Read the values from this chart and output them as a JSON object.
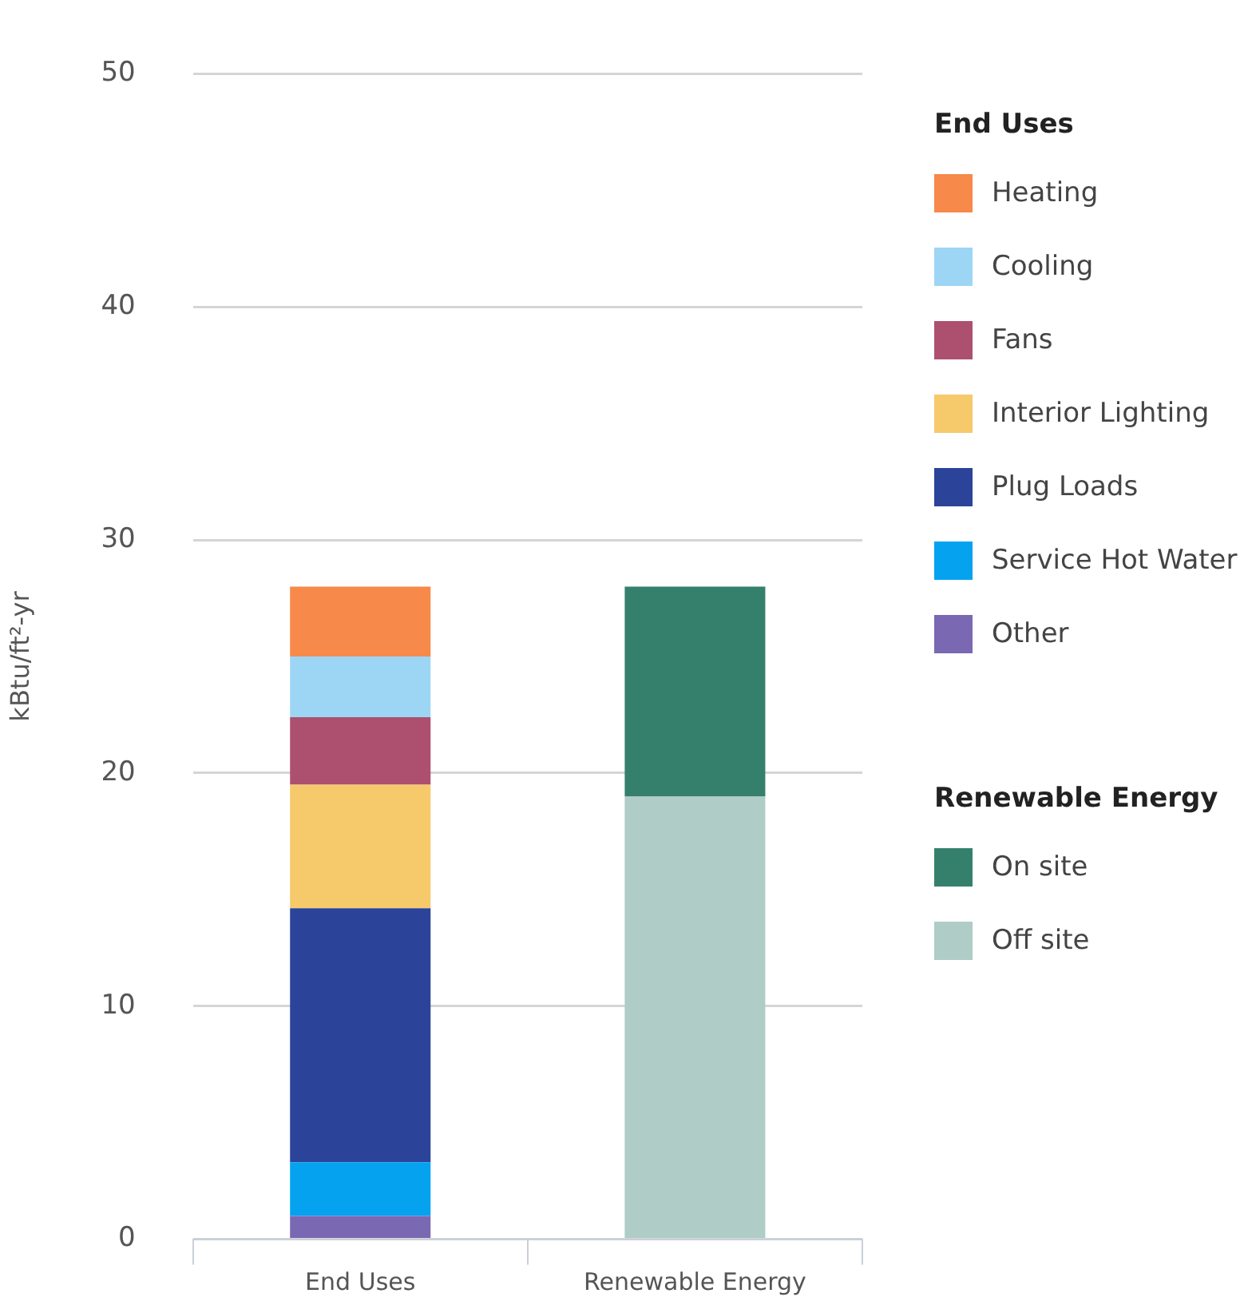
{
  "chart_data": {
    "type": "bar",
    "stacked": true,
    "ylabel": "kBtu/ft²-yr",
    "legend_title": [
      "End Uses",
      "Renewable Energy"
    ],
    "legend": "right",
    "grid": "y",
    "categories": [
      "End Uses",
      "Renewable Energy"
    ],
    "ylim": [
      0,
      50
    ],
    "yticks": [
      0,
      10,
      20,
      30,
      40,
      50
    ],
    "series": [
      {
        "name": "Other",
        "color": "#7b68b3",
        "values": [
          1.0,
          null
        ]
      },
      {
        "name": "Service Hot Water",
        "color": "#05a2f0",
        "values": [
          2.3,
          null
        ]
      },
      {
        "name": "Plug Loads",
        "color": "#2b4499",
        "values": [
          10.9,
          null
        ]
      },
      {
        "name": "Interior Lighting",
        "color": "#f6c96b",
        "values": [
          5.3,
          null
        ]
      },
      {
        "name": "Fans",
        "color": "#ad5070",
        "values": [
          2.9,
          null
        ]
      },
      {
        "name": "Cooling",
        "color": "#9dd6f5",
        "values": [
          2.6,
          null
        ]
      },
      {
        "name": "Heating",
        "color": "#f7894a",
        "values": [
          3.0,
          null
        ]
      },
      {
        "name": "Off site",
        "color": "#afccc6",
        "values": [
          null,
          19.0
        ]
      },
      {
        "name": "On site",
        "color": "#35806c",
        "values": [
          null,
          9.0
        ]
      }
    ]
  }
}
